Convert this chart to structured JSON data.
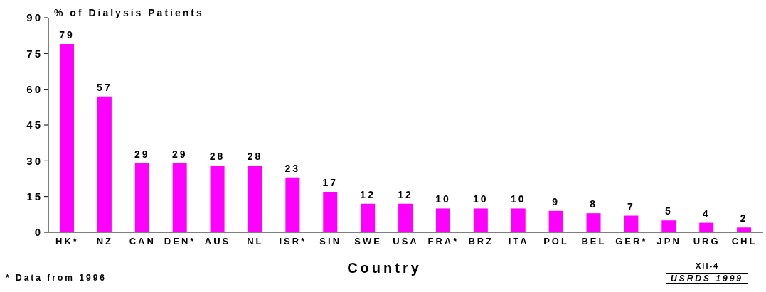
{
  "chart_data": {
    "type": "bar",
    "ylabel": "% of Dialysis Patients",
    "xlabel": "Country",
    "categories": [
      "HK*",
      "NZ",
      "CAN",
      "DEN*",
      "AUS",
      "NL",
      "ISR*",
      "SIN",
      "SWE",
      "USA",
      "FRA*",
      "BRZ",
      "ITA",
      "POL",
      "BEL",
      "GER*",
      "JPN",
      "URG",
      "CHL"
    ],
    "values": [
      79,
      57,
      29,
      29,
      28,
      28,
      23,
      17,
      12,
      12,
      10,
      10,
      10,
      9,
      8,
      7,
      5,
      4,
      2
    ],
    "color": "#ff00ff",
    "ylim": [
      0,
      90
    ],
    "yticks": [
      0,
      15,
      30,
      45,
      60,
      75,
      90
    ],
    "data_labels": true,
    "annotations": [
      "* Data from 1996",
      "XII-4",
      "USRDS 1999"
    ]
  }
}
